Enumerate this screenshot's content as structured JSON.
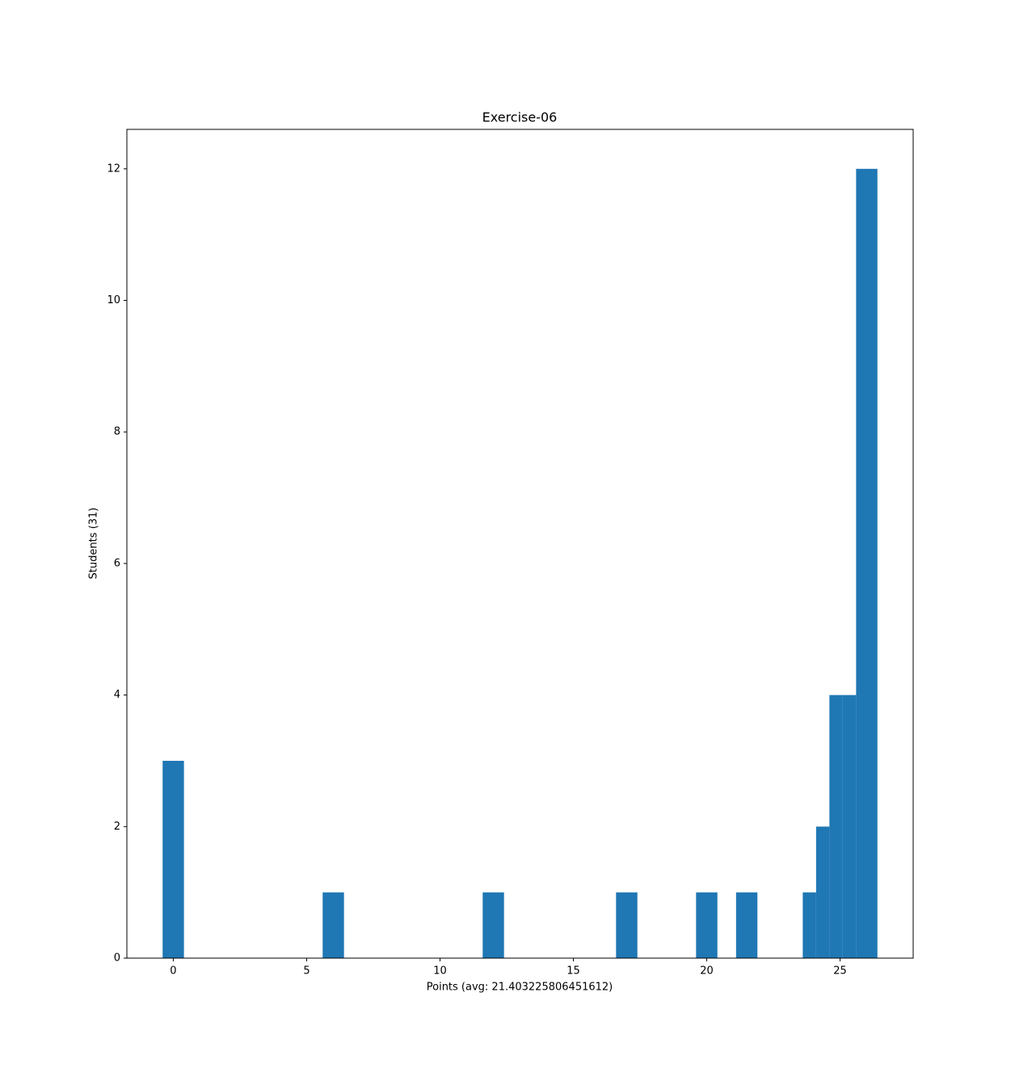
{
  "chart_data": {
    "type": "histogram",
    "title": "Exercise-06",
    "x_label": "Points (avg: 21.403225806451612)",
    "y_label": "Students (31)",
    "bins": [
      -0.4,
      0.4,
      5.6,
      6.4,
      11.6,
      12.4,
      16.6,
      17.4,
      19.6,
      20.4,
      21.1,
      21.9,
      23.6,
      24.1,
      24.6,
      25.1,
      25.6,
      26.4
    ],
    "values": [
      3,
      0,
      1,
      0,
      1,
      0,
      1,
      0,
      1,
      0,
      1,
      0,
      1,
      2,
      4,
      4,
      12
    ],
    "color": "#1f77b4",
    "xlim": [
      -1.74,
      27.74
    ],
    "xticks": [
      0,
      5,
      10,
      15,
      20,
      25
    ],
    "ylim": [
      0,
      12.6
    ],
    "yticks": [
      0,
      2,
      4,
      6,
      8,
      10,
      12
    ]
  }
}
